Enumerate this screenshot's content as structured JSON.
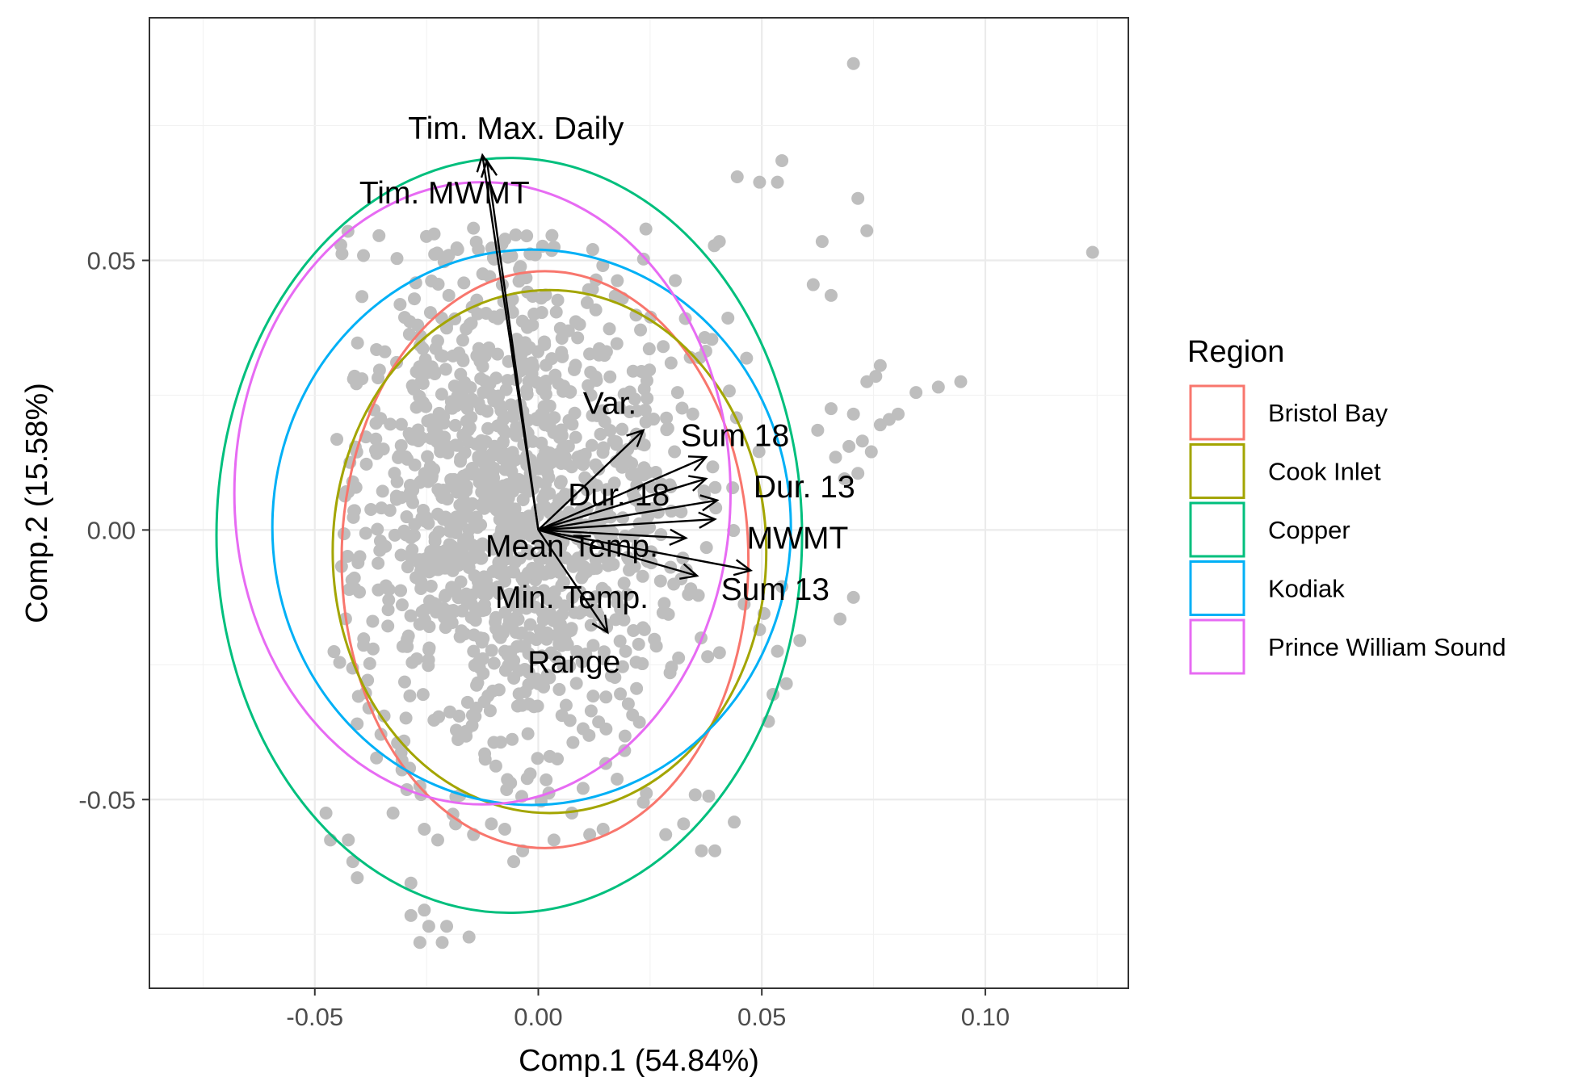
{
  "chart_data": {
    "type": "scatter",
    "title": "",
    "xlabel": "Comp.1 (54.84%)",
    "ylabel": "Comp.2 (15.58%)",
    "xlim": [
      -0.087,
      0.132
    ],
    "ylim": [
      -0.085,
      0.095
    ],
    "x_ticks": [
      -0.05,
      0.0,
      0.05,
      0.1
    ],
    "x_tick_labels": [
      "-0.05",
      "0.00",
      "0.05",
      "0.10"
    ],
    "y_ticks": [
      -0.05,
      0.0,
      0.05
    ],
    "y_tick_labels": [
      "-0.05",
      "0.00",
      "0.05"
    ],
    "grid": true,
    "legend_position": "right",
    "point_color": "#BEBEBE",
    "legend": {
      "title": "Region",
      "entries": [
        {
          "name": "Bristol Bay",
          "color": "#F8766D"
        },
        {
          "name": "Cook Inlet",
          "color": "#A3A500"
        },
        {
          "name": "Copper",
          "color": "#00BF7D"
        },
        {
          "name": "Kodiak",
          "color": "#00B0F6"
        },
        {
          "name": "Prince William Sound",
          "color": "#E76BF3"
        }
      ]
    },
    "ellipses": [
      {
        "name": "Bristol Bay",
        "cx": 0.0015,
        "cy": -0.0055,
        "rx": 0.0455,
        "ry": 0.0535
      },
      {
        "name": "Cook Inlet",
        "cx": 0.0025,
        "cy": -0.004,
        "rx": 0.0485,
        "ry": 0.0485
      },
      {
        "name": "Copper",
        "cx": -0.0065,
        "cy": -0.001,
        "rx": 0.0655,
        "ry": 0.07
      },
      {
        "name": "Kodiak",
        "cx": -0.0015,
        "cy": 0.0005,
        "rx": 0.058,
        "ry": 0.0515
      },
      {
        "name": "Prince William Sound",
        "cx": -0.0125,
        "cy": 0.0068,
        "rx": 0.0555,
        "ry": 0.0577
      }
    ],
    "loadings": [
      {
        "label": "Tim. Max. Daily",
        "x": -0.0125,
        "y": 0.0695,
        "label_x": -0.005,
        "label_y": 0.0745
      },
      {
        "label": "Tim. MWMT",
        "x": -0.0115,
        "y": 0.0685,
        "label_x": -0.021,
        "label_y": 0.0625
      },
      {
        "label": "Var.",
        "x": 0.0235,
        "y": 0.0185,
        "label_x": 0.016,
        "label_y": 0.0235
      },
      {
        "label": "Sum 18",
        "x": 0.0375,
        "y": 0.0135,
        "label_x": 0.044,
        "label_y": 0.0175
      },
      {
        "label": "Dur. 18",
        "x": 0.0375,
        "y": 0.0095,
        "label_x": 0.018,
        "label_y": 0.0065
      },
      {
        "label": "Dur. 13",
        "x": 0.04,
        "y": 0.0055,
        "label_x": 0.0595,
        "label_y": 0.008
      },
      {
        "label": "MWMT",
        "x": 0.0395,
        "y": 0.002,
        "label_x": 0.058,
        "label_y": -0.0015
      },
      {
        "label": "Mean Temp.",
        "x": 0.033,
        "y": -0.0015,
        "label_x": 0.0075,
        "label_y": -0.003
      },
      {
        "label": "Sum 13",
        "x": 0.0475,
        "y": -0.0075,
        "label_x": 0.053,
        "label_y": -0.011
      },
      {
        "label": "Min. Temp.",
        "x": 0.0355,
        "y": -0.0085,
        "label_x": 0.0075,
        "label_y": -0.0125
      },
      {
        "label": "Range",
        "x": 0.0155,
        "y": -0.019,
        "label_x": 0.008,
        "label_y": -0.0245
      }
    ],
    "points": [
      [
        0.0705,
        0.0865
      ],
      [
        0.124,
        0.0515
      ],
      [
        0.0545,
        0.0685
      ],
      [
        0.0715,
        0.0615
      ],
      [
        0.0445,
        0.0655
      ],
      [
        0.0495,
        0.0645
      ],
      [
        0.0535,
        0.0645
      ],
      [
        0.0735,
        0.0555
      ],
      [
        0.0635,
        0.0535
      ],
      [
        0.0405,
        0.0535
      ],
      [
        0.0615,
        0.0455
      ],
      [
        0.0655,
        0.0435
      ],
      [
        0.0765,
        0.0305
      ],
      [
        0.0735,
        0.0275
      ],
      [
        0.0945,
        0.0275
      ],
      [
        0.0895,
        0.0265
      ],
      [
        0.0845,
        0.0255
      ],
      [
        0.0755,
        0.0285
      ],
      [
        0.0805,
        0.0215
      ],
      [
        0.0785,
        0.0205
      ],
      [
        0.0765,
        0.0195
      ],
      [
        0.0725,
        0.0165
      ],
      [
        0.0695,
        0.0155
      ],
      [
        0.0665,
        0.0135
      ],
      [
        0.0745,
        0.0145
      ],
      [
        0.0715,
        0.0105
      ],
      [
        0.0685,
        0.0095
      ],
      [
        0.0705,
        0.0215
      ],
      [
        0.0655,
        0.0225
      ],
      [
        0.0625,
        0.0185
      ],
      [
        0.0705,
        -0.0125
      ],
      [
        0.0675,
        -0.0165
      ],
      [
        0.0585,
        -0.0205
      ],
      [
        0.0535,
        -0.0225
      ],
      [
        0.0555,
        -0.0285
      ],
      [
        0.0525,
        -0.0305
      ],
      [
        0.0515,
        -0.0355
      ],
      [
        0.0545,
        -0.0105
      ],
      [
        0.0505,
        -0.0155
      ],
      [
        0.0495,
        -0.0185
      ],
      [
        0.0365,
        -0.0595
      ],
      [
        0.0395,
        -0.0595
      ],
      [
        0.0235,
        -0.0505
      ],
      [
        0.0285,
        -0.0565
      ],
      [
        0.0325,
        -0.0545
      ],
      [
        -0.0475,
        -0.0525
      ],
      [
        -0.0465,
        -0.0575
      ],
      [
        -0.0425,
        -0.0575
      ],
      [
        -0.0415,
        -0.0615
      ],
      [
        -0.0405,
        -0.0645
      ],
      [
        -0.0325,
        -0.0525
      ],
      [
        -0.0285,
        -0.0655
      ],
      [
        -0.0255,
        -0.0705
      ],
      [
        -0.0285,
        -0.0715
      ],
      [
        -0.0265,
        -0.0765
      ],
      [
        -0.0245,
        -0.0735
      ],
      [
        -0.0215,
        -0.0765
      ],
      [
        -0.0205,
        -0.0735
      ],
      [
        -0.0155,
        -0.0755
      ],
      [
        -0.0055,
        -0.0615
      ],
      [
        -0.0035,
        -0.0595
      ],
      [
        0.0035,
        -0.0575
      ],
      [
        0.0115,
        -0.0565
      ],
      [
        0.0075,
        -0.0525
      ],
      [
        0.0145,
        -0.0555
      ],
      [
        -0.0075,
        -0.0555
      ],
      [
        -0.0105,
        -0.0545
      ],
      [
        -0.0145,
        -0.0565
      ],
      [
        -0.0185,
        -0.0545
      ],
      [
        -0.0225,
        -0.0575
      ],
      [
        -0.0255,
        -0.0555
      ],
      [
        -0.0305,
        -0.0445
      ],
      [
        -0.0265,
        -0.0475
      ],
      [
        -0.0315,
        -0.0395
      ],
      [
        -0.0345,
        -0.0345
      ]
    ]
  }
}
